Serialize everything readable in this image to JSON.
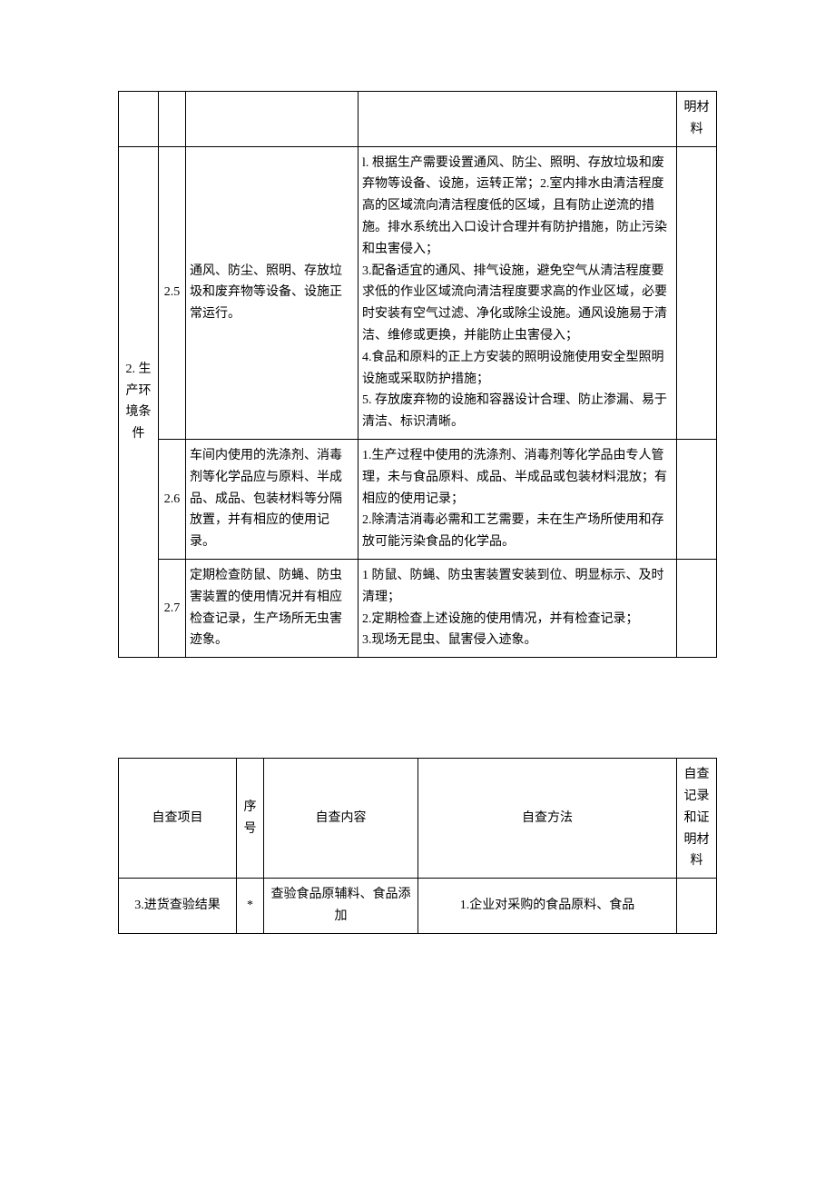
{
  "table1": {
    "prevNoteFragment": "明材料",
    "categoryLabel": "2. 生产环境条件",
    "rows": [
      {
        "seq": "2.5",
        "content": "通风、防尘、照明、存放垃圾和废弃物等设备、设施正常运行。",
        "method": "l. 根据生产需要设置通风、防尘、照明、存放垃圾和废弃物等设备、设施，运转正常；2.室内排水由清洁程度高的区域流向清洁程度低的区域，且有防止逆流的措施。排水系统出入口设计合理并有防护措施，防止污染和虫害侵入；\n3.配备适宜的通风、排气设施，避免空气从清洁程度要求低的作业区域流向清洁程度要求高的作业区域，必要时安装有空气过滤、净化或除尘设施。通风设施易于清洁、维修或更换，并能防止虫害侵入；\n4.食品和原料的正上方安装的照明设施使用安全型照明设施或采取防护措施；\n5. 存放废弃物的设施和容器设计合理、防止渗漏、易于清洁、标识清晰。"
      },
      {
        "seq": "2.6",
        "content": "车间内使用的洗涤剂、消毒剂等化学品应与原料、半成品、成品、包装材料等分隔放置，并有相应的使用记录。",
        "method": "1.生产过程中使用的洗涤剂、消毒剂等化学品由专人管理，未与食品原料、成品、半成品或包装材料混放；有相应的使用记录；\n2.除清洁消毒必需和工艺需要，未在生产场所使用和存放可能污染食品的化学品。"
      },
      {
        "seq": "2.7",
        "content": "定期检查防鼠、防蝇、防虫害装置的使用情况并有相应检查记录，生产场所无虫害迹象。",
        "method": "1 防鼠、防蝇、防虫害装置安装到位、明显标示、及时清理；\n2.定期检查上述设施的使用情况，并有检查记录；\n3.现场无昆虫、鼠害侵入迹象。"
      }
    ]
  },
  "table2": {
    "header": {
      "cat": "自查项目",
      "seq": "序号",
      "cont": "自查内容",
      "meth": "自查方法",
      "note": "自查记录和证明材料"
    },
    "row": {
      "cat": "3.进货查验结果",
      "seq": "*",
      "cont": "查验食品原辅料、食品添加",
      "meth": "1.企业对采购的食品原料、食品",
      "note": ""
    }
  }
}
